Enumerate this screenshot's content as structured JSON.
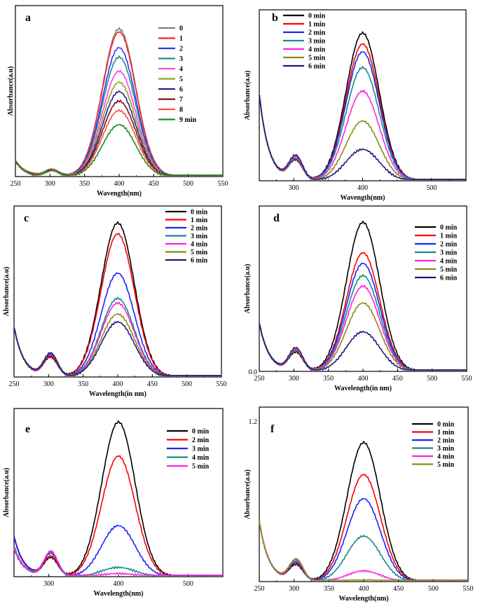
{
  "chart_data": [
    {
      "panel": "a",
      "type": "line",
      "xlabel": "Wavength(nm)",
      "ylabel": "Absorbance(a.u)",
      "xlim": [
        250,
        550
      ],
      "xticks": [
        250,
        300,
        350,
        400,
        450,
        500,
        550
      ],
      "ylim": [
        0,
        1
      ],
      "yticks": [],
      "legend": "top-right",
      "series": [
        {
          "name": "0",
          "color": "#7f7f7f",
          "peak": 0.94,
          "base": 0.0,
          "short": 0.1
        },
        {
          "name": "1",
          "color": "#ff2020",
          "peak": 0.92,
          "base": 0.0,
          "short": 0.1
        },
        {
          "name": "2",
          "color": "#2a32ff",
          "peak": 0.82,
          "base": 0.0,
          "short": 0.1
        },
        {
          "name": "3",
          "color": "#1f8c86",
          "peak": 0.76,
          "base": 0.0,
          "short": 0.1
        },
        {
          "name": "4",
          "color": "#ff44dd",
          "peak": 0.67,
          "base": 0.0,
          "short": 0.1
        },
        {
          "name": "5",
          "color": "#9c9c1c",
          "peak": 0.6,
          "base": 0.0,
          "short": 0.1
        },
        {
          "name": "6",
          "color": "#22228a",
          "peak": 0.54,
          "base": 0.0,
          "short": 0.1
        },
        {
          "name": "7",
          "color": "#7a1212",
          "peak": 0.48,
          "base": 0.0,
          "short": 0.1
        },
        {
          "name": "8",
          "color": "#ff4c4c",
          "peak": 0.42,
          "base": 0.0,
          "short": 0.1
        },
        {
          "name": "9 min",
          "color": "#1e8a1e",
          "peak": 0.33,
          "base": 0.0,
          "short": 0.1
        }
      ]
    },
    {
      "panel": "b",
      "type": "line",
      "xlabel": "Wavength(nm)",
      "ylabel": "Absorbance(a.u)",
      "xlim": [
        250,
        550
      ],
      "xticks": [
        300,
        400,
        500
      ],
      "ylim": [
        0,
        1
      ],
      "yticks": [],
      "legend": "top-left",
      "series": [
        {
          "name": "0 min",
          "color": "#000000",
          "peak": 0.94,
          "base": 0.0,
          "short": 0.55
        },
        {
          "name": "1 min",
          "color": "#ff0000",
          "peak": 0.87,
          "base": 0.0,
          "short": 0.55
        },
        {
          "name": "2 min",
          "color": "#1a22ff",
          "peak": 0.82,
          "base": 0.0,
          "short": 0.55
        },
        {
          "name": "3 min",
          "color": "#148c86",
          "peak": 0.72,
          "base": 0.0,
          "short": 0.55
        },
        {
          "name": "4 min",
          "color": "#ff22dd",
          "peak": 0.57,
          "base": 0.0,
          "short": 0.55
        },
        {
          "name": "5 min",
          "color": "#8c8c10",
          "peak": 0.38,
          "base": 0.0,
          "short": 0.55
        },
        {
          "name": "6 min",
          "color": "#1a1a80",
          "peak": 0.2,
          "base": 0.0,
          "short": 0.55
        }
      ]
    },
    {
      "panel": "c",
      "type": "line",
      "xlabel": "Wavelength(in nm)",
      "ylabel": "Absorbance(a.u)",
      "xlim": [
        250,
        550
      ],
      "xticks": [
        250,
        300,
        350,
        400,
        450,
        500,
        550
      ],
      "ylim": [
        0,
        1
      ],
      "yticks": [],
      "legend": "top-right",
      "series": [
        {
          "name": "0 min",
          "color": "#000000",
          "peak": 0.98,
          "base": 0.0,
          "short": 0.32
        },
        {
          "name": "1 min",
          "color": "#ff0000",
          "peak": 0.91,
          "base": 0.0,
          "short": 0.32
        },
        {
          "name": "2 min",
          "color": "#1a22ff",
          "peak": 0.66,
          "base": 0.0,
          "short": 0.32
        },
        {
          "name": "3 min",
          "color": "#148c86",
          "peak": 0.5,
          "base": 0.0,
          "short": 0.32
        },
        {
          "name": "4 min",
          "color": "#ff22dd",
          "peak": 0.47,
          "base": 0.0,
          "short": 0.32
        },
        {
          "name": "5 min",
          "color": "#8c8c10",
          "peak": 0.4,
          "base": 0.0,
          "short": 0.32
        },
        {
          "name": "6 min",
          "color": "#1a1a80",
          "peak": 0.35,
          "base": 0.0,
          "short": 0.32
        }
      ]
    },
    {
      "panel": "d",
      "type": "line",
      "xlabel": "Wavelength(in nm)",
      "ylabel": "Absorbance(a.u)",
      "xlim": [
        250,
        550
      ],
      "xticks": [
        250,
        300,
        350,
        400,
        450,
        500,
        550
      ],
      "ylim": [
        0,
        1
      ],
      "yticks": [
        0
      ],
      "ytick_labels": [
        "0.0"
      ],
      "legend": "top-right",
      "series": [
        {
          "name": "0 min",
          "color": "#000000",
          "peak": 0.98,
          "base": 0.0,
          "short": 0.32
        },
        {
          "name": "1 min",
          "color": "#ff0000",
          "peak": 0.78,
          "base": 0.0,
          "short": 0.32
        },
        {
          "name": "2 min",
          "color": "#1a22ff",
          "peak": 0.71,
          "base": 0.0,
          "short": 0.32
        },
        {
          "name": "3 min",
          "color": "#148c86",
          "peak": 0.63,
          "base": 0.0,
          "short": 0.32
        },
        {
          "name": "4 min",
          "color": "#ff22dd",
          "peak": 0.56,
          "base": 0.0,
          "short": 0.32
        },
        {
          "name": "5 min",
          "color": "#8c8c10",
          "peak": 0.45,
          "base": 0.0,
          "short": 0.32
        },
        {
          "name": "6 min",
          "color": "#1a1a80",
          "peak": 0.26,
          "base": 0.0,
          "short": 0.32
        }
      ]
    },
    {
      "panel": "e",
      "type": "line",
      "xlabel": "Wavelength(nm)",
      "ylabel": "Absorbance(a.u)",
      "xlim": [
        250,
        550
      ],
      "xticks": [
        300,
        400,
        500
      ],
      "ylim": [
        0,
        1
      ],
      "yticks": [],
      "legend": "top-right",
      "series": [
        {
          "name": "0 min",
          "color": "#000000",
          "peak": 1.0,
          "base": 0.0,
          "short": 0.26
        },
        {
          "name": "2 min",
          "color": "#ff0000",
          "peak": 0.78,
          "base": 0.0,
          "short": 0.26
        },
        {
          "name": "3 min",
          "color": "#1a22ff",
          "peak": 0.33,
          "base": 0.0,
          "short": 0.26
        },
        {
          "name": "4 min",
          "color": "#148c86",
          "peak": 0.06,
          "base": 0.0,
          "short": 0.2
        },
        {
          "name": "5 min",
          "color": "#ff22dd",
          "peak": 0.02,
          "base": 0.0,
          "short": 0.18
        }
      ]
    },
    {
      "panel": "f",
      "type": "line",
      "xlabel": "Wavelength(nm)",
      "ylabel": "Absorbance(a.u)",
      "xlim": [
        250,
        550
      ],
      "xticks": [
        250,
        300,
        350,
        400,
        450,
        500,
        550
      ],
      "ylim": [
        0,
        1.2
      ],
      "yticks": [
        1.2
      ],
      "ytick_labels": [
        "1.2"
      ],
      "legend": "top-right",
      "series": [
        {
          "name": "0 min",
          "color": "#000000",
          "peak": 1.04,
          "base": 0.0,
          "short": 0.45
        },
        {
          "name": "1 min",
          "color": "#ff0000",
          "peak": 0.8,
          "base": 0.0,
          "short": 0.45
        },
        {
          "name": "2 min",
          "color": "#1a22ff",
          "peak": 0.62,
          "base": 0.0,
          "short": 0.45
        },
        {
          "name": "3 min",
          "color": "#148c86",
          "peak": 0.34,
          "base": 0.0,
          "short": 0.45
        },
        {
          "name": "4 min",
          "color": "#ff22dd",
          "peak": 0.08,
          "base": 0.0,
          "short": 0.45
        },
        {
          "name": "5 min",
          "color": "#8c8c10",
          "peak": 0.01,
          "base": 0.0,
          "short": 0.45
        }
      ]
    }
  ]
}
